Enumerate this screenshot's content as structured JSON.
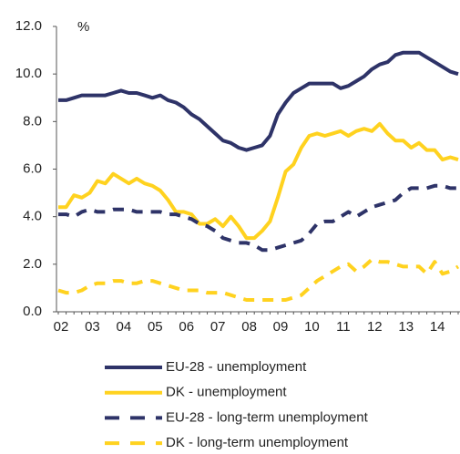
{
  "chart_data": {
    "type": "line",
    "unit_label": "%",
    "categories": [
      "02",
      null,
      null,
      null,
      "03",
      null,
      null,
      null,
      "04",
      null,
      null,
      null,
      "05",
      null,
      null,
      null,
      "06",
      null,
      null,
      null,
      "07",
      null,
      null,
      null,
      "08",
      null,
      null,
      null,
      "09",
      null,
      null,
      null,
      "10",
      null,
      null,
      null,
      "11",
      null,
      null,
      null,
      "12",
      null,
      null,
      null,
      "13",
      null,
      null,
      null,
      "14",
      null,
      null,
      null
    ],
    "ylim": [
      0,
      12
    ],
    "yticks": [
      {
        "value": 0,
        "label": "0.0"
      },
      {
        "value": 2,
        "label": "2.0"
      },
      {
        "value": 4,
        "label": "4.0"
      },
      {
        "value": 6,
        "label": "6.0"
      },
      {
        "value": 8,
        "label": "8.0"
      },
      {
        "value": 10,
        "label": "10.0"
      },
      {
        "value": 12,
        "label": "12.0"
      }
    ],
    "series": [
      {
        "name": "EU-28 - unemployment",
        "color": "#2e3368",
        "dashed": false,
        "values": [
          8.9,
          8.9,
          9.0,
          9.1,
          9.1,
          9.1,
          9.1,
          9.2,
          9.3,
          9.2,
          9.2,
          9.1,
          9.0,
          9.1,
          8.9,
          8.8,
          8.6,
          8.3,
          8.1,
          7.8,
          7.5,
          7.2,
          7.1,
          6.9,
          6.8,
          6.9,
          7.0,
          7.4,
          8.3,
          8.8,
          9.2,
          9.4,
          9.6,
          9.6,
          9.6,
          9.6,
          9.4,
          9.5,
          9.7,
          9.9,
          10.2,
          10.4,
          10.5,
          10.8,
          10.9,
          10.9,
          10.9,
          10.7,
          10.5,
          10.3,
          10.1,
          10.0
        ]
      },
      {
        "name": "DK - unemployment",
        "color": "#ffd21f",
        "dashed": false,
        "values": [
          4.4,
          4.4,
          4.9,
          4.8,
          5.0,
          5.5,
          5.4,
          5.8,
          5.6,
          5.4,
          5.6,
          5.4,
          5.3,
          5.1,
          4.7,
          4.2,
          4.2,
          4.1,
          3.7,
          3.7,
          3.9,
          3.6,
          4.0,
          3.6,
          3.1,
          3.1,
          3.4,
          3.8,
          4.8,
          5.9,
          6.2,
          6.9,
          7.4,
          7.5,
          7.4,
          7.5,
          7.6,
          7.4,
          7.6,
          7.7,
          7.6,
          7.9,
          7.5,
          7.2,
          7.2,
          6.9,
          7.1,
          6.8,
          6.8,
          6.4,
          6.5,
          6.4
        ]
      },
      {
        "name": "EU-28 - long-term unemployment",
        "color": "#2e3368",
        "dashed": true,
        "values": [
          4.1,
          4.1,
          4.0,
          4.2,
          4.3,
          4.2,
          4.2,
          4.3,
          4.3,
          4.3,
          4.2,
          4.2,
          4.2,
          4.2,
          4.1,
          4.1,
          4.0,
          3.9,
          3.7,
          3.6,
          3.4,
          3.1,
          3.0,
          2.9,
          2.9,
          2.8,
          2.6,
          2.6,
          2.7,
          2.8,
          2.9,
          3.0,
          3.3,
          3.7,
          3.8,
          3.8,
          4.0,
          4.2,
          4.0,
          4.2,
          4.4,
          4.5,
          4.6,
          4.7,
          5.0,
          5.2,
          5.2,
          5.2,
          5.3,
          5.3,
          5.2,
          5.2
        ]
      },
      {
        "name": "DK - long-term unemployment",
        "color": "#ffd21f",
        "dashed": true,
        "values": [
          0.9,
          0.8,
          0.8,
          0.9,
          1.1,
          1.2,
          1.2,
          1.3,
          1.3,
          1.2,
          1.2,
          1.3,
          1.3,
          1.2,
          1.1,
          1.0,
          0.9,
          0.9,
          0.9,
          0.8,
          0.8,
          0.8,
          0.7,
          0.6,
          0.5,
          0.5,
          0.5,
          0.5,
          0.5,
          0.5,
          0.6,
          0.7,
          1.0,
          1.3,
          1.5,
          1.7,
          1.9,
          2.0,
          1.7,
          1.9,
          2.2,
          2.1,
          2.1,
          2.0,
          1.9,
          1.9,
          1.9,
          1.6,
          2.1,
          1.6,
          1.7,
          1.9
        ]
      }
    ]
  }
}
